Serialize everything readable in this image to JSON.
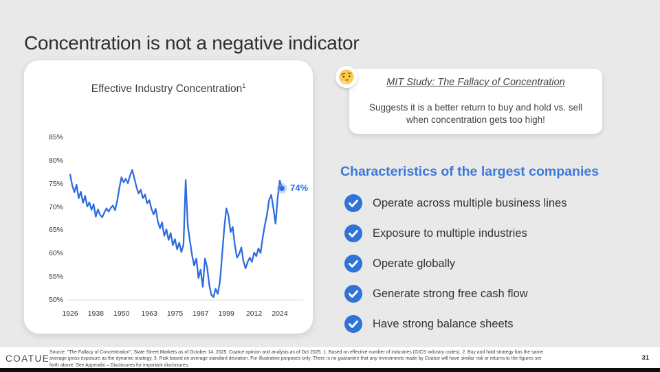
{
  "slide": {
    "title": "Concentration is not a negative indicator",
    "page_number": "31"
  },
  "chart_card": {
    "title": "Effective Industry Concentration",
    "title_superscript": "1"
  },
  "chart_data": {
    "type": "line",
    "title": "Effective Industry Concentration",
    "legend": "none",
    "grid": "baseline only at 50%",
    "y_ticks": [
      "85%",
      "80%",
      "75%",
      "70%",
      "65%",
      "60%",
      "55%",
      "50%"
    ],
    "x_ticks": [
      "1926",
      "1938",
      "1950",
      "1963",
      "1975",
      "1987",
      "1999",
      "2012",
      "2024"
    ],
    "y_range": [
      50,
      85
    ],
    "x_range": [
      1926,
      2025
    ],
    "line_color": "#2e6dde",
    "end_label": "74%",
    "series": [
      {
        "name": "Effective Industry Concentration (%)",
        "start_year": 1926,
        "values": [
          77.0,
          74.6,
          73.2,
          74.8,
          71.9,
          73.3,
          70.9,
          72.4,
          70.1,
          71.0,
          69.4,
          70.6,
          67.9,
          69.5,
          68.3,
          67.8,
          68.8,
          69.7,
          69.0,
          69.8,
          70.3,
          69.3,
          71.3,
          74.1,
          76.4,
          75.3,
          76.1,
          75.1,
          76.7,
          78.0,
          76.2,
          74.3,
          72.9,
          73.7,
          71.9,
          72.7,
          70.8,
          71.5,
          69.6,
          68.4,
          69.6,
          66.9,
          65.4,
          66.7,
          63.8,
          65.2,
          62.9,
          64.4,
          61.8,
          63.1,
          60.9,
          62.3,
          60.3,
          61.9,
          75.8,
          65.9,
          62.7,
          59.6,
          57.4,
          58.9,
          54.7,
          56.5,
          52.8,
          58.9,
          57.1,
          53.3,
          51.1,
          50.6,
          52.4,
          51.3,
          53.9,
          59.5,
          65.3,
          69.7,
          68.2,
          64.6,
          65.7,
          61.8,
          59.1,
          59.9,
          61.3,
          58.3,
          56.8,
          58.2,
          59.1,
          58.2,
          60.2,
          59.4,
          61.1,
          60.1,
          63.4,
          66.1,
          68.3,
          71.5,
          72.6,
          69.7,
          66.4,
          72.0,
          75.7,
          74.0
        ]
      }
    ]
  },
  "callout": {
    "emoji": "thinking-face",
    "title": "MIT Study: The Fallacy of Concentration",
    "body": "Suggests it is a better return to buy and hold vs. sell when concentration gets too high!"
  },
  "right_panel": {
    "heading": "Characteristics of the largest companies",
    "heading_color": "#3c78d8",
    "check_color": "#2f72d8",
    "bullets": [
      "Operate across multiple business lines",
      "Exposure to multiple industries",
      "Operate globally",
      "Generate strong free cash flow",
      "Have strong balance sheets"
    ]
  },
  "footer": {
    "logo": "COATUE",
    "lines": [
      "Source: \"The Fallacy of Concentration\", State Street Markets as of October 14, 2025. Coatue opinion and analysis as of Oct 2025. 1. Based on effective number of industries (GICS industry codes). 2. Buy and hold strategy has the same",
      "average gross exposure as the dynamic strategy. 3. Risk based on average standard deviation.  For illustrative purposes only. There is no guarantee that any investments made by Coatue will have similar risk or returns to the figures set",
      "forth above.  See Appendix – Disclosures for important disclosures."
    ]
  }
}
